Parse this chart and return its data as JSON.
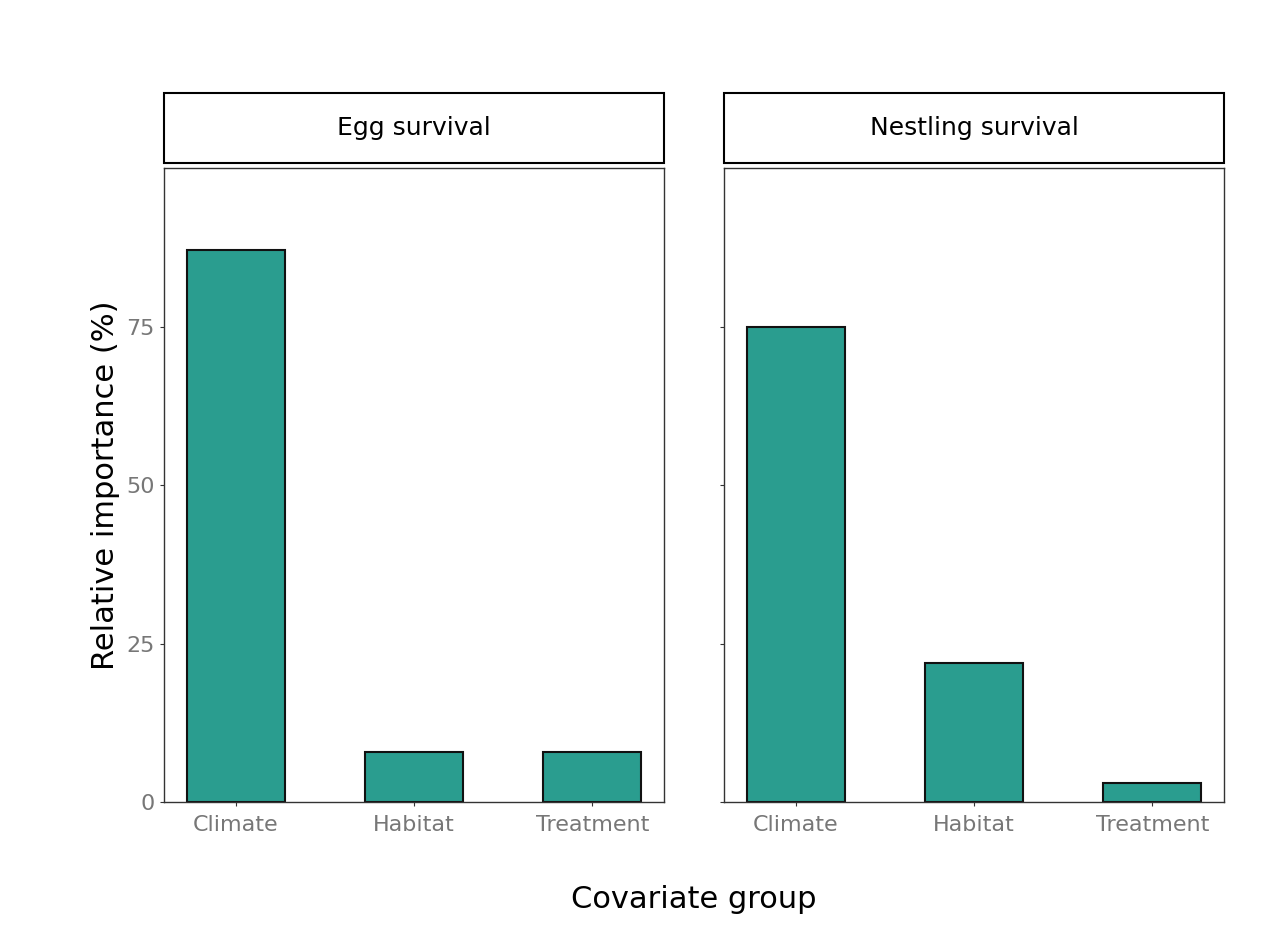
{
  "panels": [
    {
      "title": "Egg survival",
      "categories": [
        "Climate",
        "Habitat",
        "Treatment"
      ],
      "values": [
        87,
        8,
        8
      ]
    },
    {
      "title": "Nestling survival",
      "categories": [
        "Climate",
        "Habitat",
        "Treatment"
      ],
      "values": [
        75,
        22,
        3
      ]
    }
  ],
  "bar_color": "#2a9d8f",
  "bar_edgecolor": "#111111",
  "bar_linewidth": 1.5,
  "ylabel": "Relative importance (%)",
  "xlabel": "Covariate group",
  "ylim": [
    0,
    100
  ],
  "yticks": [
    0,
    25,
    50,
    75
  ],
  "background_color": "#ffffff",
  "tick_color": "#777777",
  "spine_color": "#333333",
  "strip_fontsize": 18,
  "axis_label_fontsize": 22,
  "tick_fontsize": 16
}
